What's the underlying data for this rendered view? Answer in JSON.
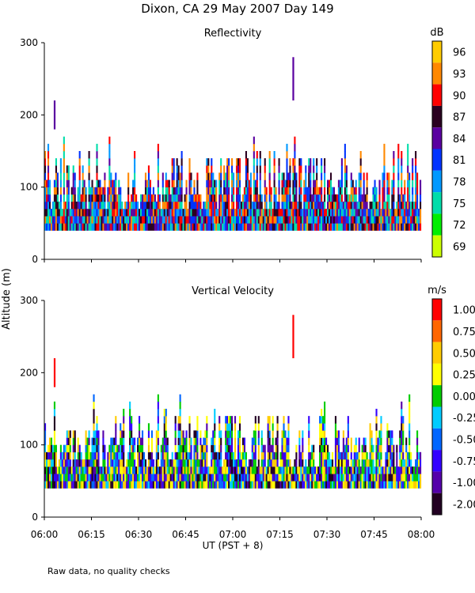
{
  "title": "Dixon, CA 29 May 2007  Day 149",
  "ylabel": "Altitude (m)",
  "xlabel": "UT  (PST + 8)",
  "footnote": "Raw data, no quality checks",
  "chart_data": {
    "type": "heatmap",
    "x_ticks": [
      "06:00",
      "06:15",
      "06:30",
      "06:45",
      "07:00",
      "07:15",
      "07:30",
      "07:45",
      "08:00"
    ],
    "x_range_minutes": [
      0,
      120
    ],
    "panels": [
      {
        "id": "reflectivity",
        "title": "Reflectivity",
        "unit": "dB",
        "y_ticks": [
          0,
          100,
          200,
          300
        ],
        "ylim": [
          0,
          300
        ],
        "colorbar_labels": [
          "96",
          "93",
          "90",
          "87",
          "84",
          "81",
          "78",
          "75",
          "72",
          "69"
        ],
        "colorbar_colors": [
          "#ffcc00",
          "#ff8800",
          "#ff0000",
          "#2a0020",
          "#5a00a0",
          "#0033ff",
          "#0099ff",
          "#00ddaa",
          "#00ee00",
          "#ccff00"
        ]
      },
      {
        "id": "velocity",
        "title": "Vertical Velocity",
        "unit": "m/s",
        "y_ticks": [
          0,
          100,
          200,
          300
        ],
        "ylim": [
          0,
          300
        ],
        "colorbar_labels": [
          "1.00",
          "0.75",
          "0.50",
          "0.25",
          "0.00",
          "-0.25",
          "-0.50",
          "-0.75",
          "-1.00",
          "-2.00"
        ],
        "colorbar_colors": [
          "#ff0000",
          "#ff6600",
          "#ffcc00",
          "#ffff00",
          "#00cc00",
          "#00ccff",
          "#0066ff",
          "#3300ff",
          "#5500aa",
          "#220022"
        ]
      }
    ]
  }
}
